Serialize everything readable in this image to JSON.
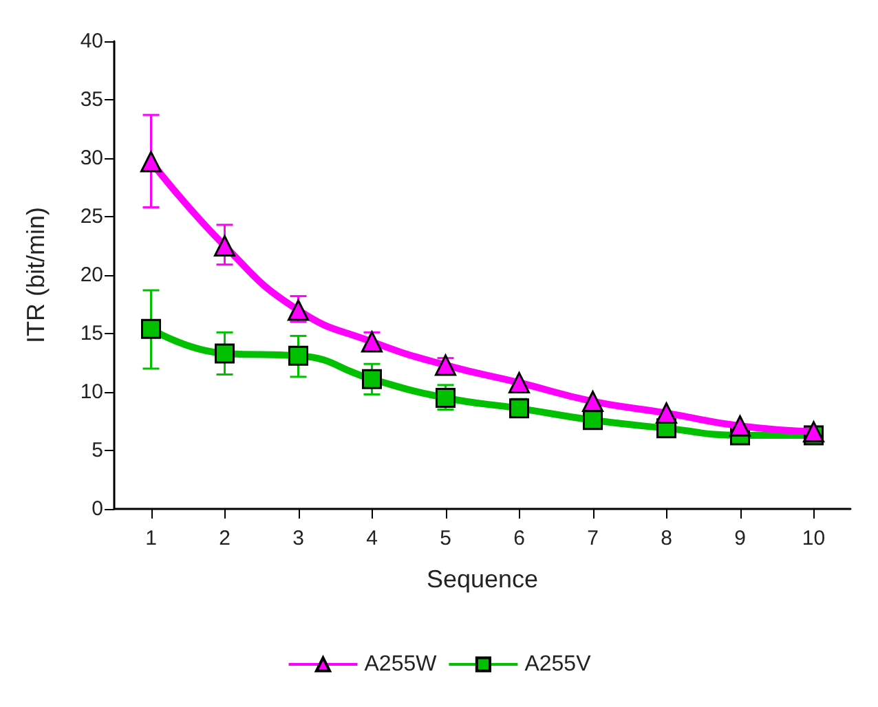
{
  "chart_data": {
    "type": "line",
    "xlabel": "Sequence",
    "ylabel": "ITR (bit/min)",
    "categories": [
      "1",
      "2",
      "3",
      "4",
      "5",
      "6",
      "7",
      "8",
      "9",
      "10"
    ],
    "ylim": [
      0,
      40
    ],
    "yticks": [
      0,
      5,
      10,
      15,
      20,
      25,
      30,
      35,
      40
    ],
    "grid": false,
    "legend": "bottom",
    "line_style": "solid",
    "series": [
      {
        "name": "A255W",
        "color": "#ff00ff",
        "marker": "triangle",
        "values": [
          29.7,
          22.5,
          17.0,
          14.3,
          12.3,
          10.8,
          9.2,
          8.2,
          7.1,
          6.6
        ],
        "errors": [
          [
            25.8,
            33.7
          ],
          [
            20.9,
            24.3
          ],
          [
            16.0,
            18.2
          ],
          [
            13.6,
            15.1
          ],
          [
            11.8,
            12.9
          ],
          null,
          null,
          null,
          null,
          null
        ]
      },
      {
        "name": "A255V",
        "color": "#00c000",
        "marker": "square",
        "values": [
          15.4,
          13.3,
          13.1,
          11.1,
          9.5,
          8.6,
          7.6,
          6.9,
          6.3,
          6.3
        ],
        "errors": [
          [
            12.0,
            18.7
          ],
          [
            11.5,
            15.1
          ],
          [
            11.3,
            14.8
          ],
          [
            9.8,
            12.4
          ],
          [
            8.5,
            10.6
          ],
          [
            7.9,
            9.4
          ],
          null,
          null,
          null,
          null
        ]
      }
    ]
  }
}
